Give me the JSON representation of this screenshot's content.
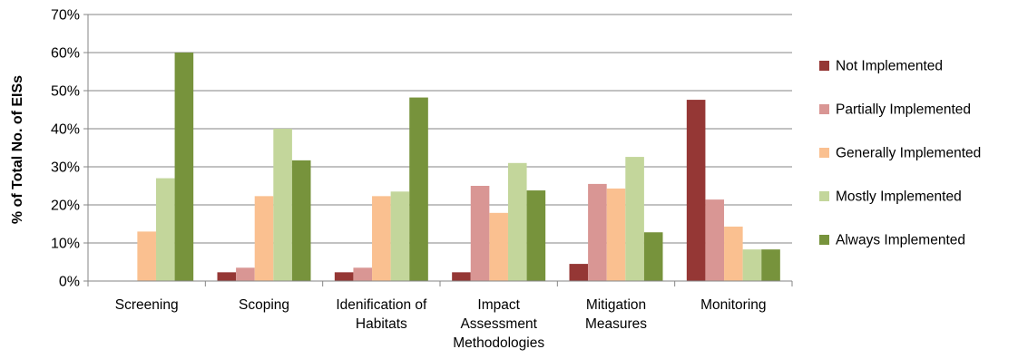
{
  "chart_data": {
    "type": "bar",
    "title": "",
    "xlabel": "",
    "ylabel": "% of Total No. of EISs",
    "ylim": [
      0,
      70
    ],
    "yticks": [
      0,
      10,
      20,
      30,
      40,
      50,
      60,
      70
    ],
    "ytick_labels": [
      "0%",
      "10%",
      "20%",
      "30%",
      "40%",
      "50%",
      "60%",
      "70%"
    ],
    "grid": true,
    "legend_position": "right",
    "categories": [
      [
        "Screening"
      ],
      [
        "Scoping"
      ],
      [
        "Idenification of",
        "Habitats"
      ],
      [
        "Impact",
        "Assessment",
        "Methodologies"
      ],
      [
        "Mitigation",
        "Measures"
      ],
      [
        "Monitoring"
      ]
    ],
    "series": [
      {
        "name": "Not Implemented",
        "color": "#953735",
        "values": [
          0,
          2.3,
          2.3,
          2.3,
          4.5,
          47.6
        ]
      },
      {
        "name": "Partially Implemented",
        "color": "#D99694",
        "values": [
          0,
          3.5,
          3.5,
          25.0,
          25.5,
          21.4
        ]
      },
      {
        "name": "Generally Implemented",
        "color": "#FAC090",
        "values": [
          13.0,
          22.3,
          22.3,
          17.9,
          24.3,
          14.3
        ]
      },
      {
        "name": "Mostly Implemented",
        "color": "#C3D69B",
        "values": [
          27.0,
          40.0,
          23.5,
          31.0,
          32.6,
          8.3
        ]
      },
      {
        "name": "Always Implemented",
        "color": "#77933C",
        "values": [
          60.0,
          31.7,
          48.2,
          23.8,
          12.8,
          8.3
        ]
      }
    ]
  }
}
